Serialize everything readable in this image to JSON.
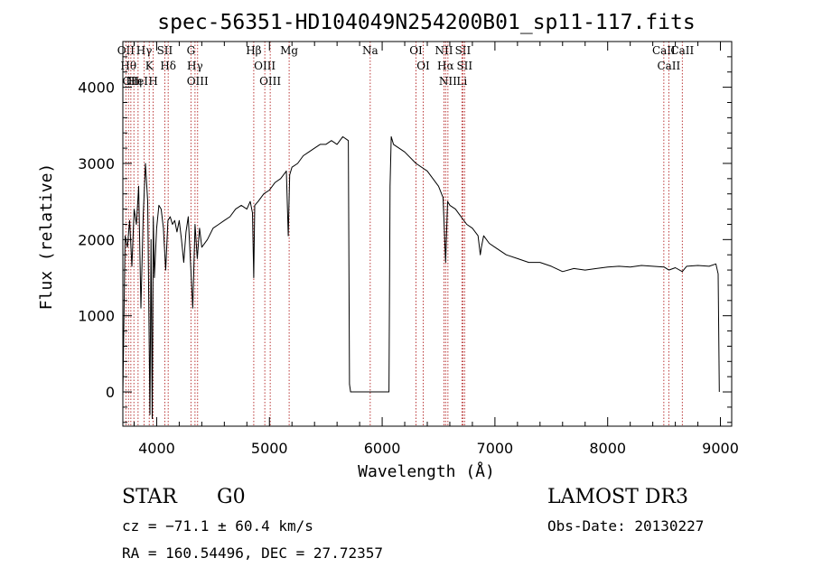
{
  "chart_data": {
    "type": "line",
    "title": "spec-56351-HD104049N254200B01_sp11-117.fits",
    "xlabel": "Wavelength (Å)",
    "ylabel": "Flux (relative)",
    "xlim": [
      3700,
      9100
    ],
    "ylim": [
      -450,
      4600
    ],
    "xticks": [
      4000,
      5000,
      6000,
      7000,
      8000,
      9000
    ],
    "yticks": [
      0,
      1000,
      2000,
      3000,
      4000
    ],
    "grid": false,
    "series": [
      {
        "x": [
          3700,
          3720,
          3740,
          3760,
          3780,
          3800,
          3820,
          3840,
          3860,
          3880,
          3900,
          3920,
          3940,
          3950,
          3960,
          3970,
          3980,
          4000,
          4020,
          4040,
          4060,
          4080,
          4100,
          4120,
          4140,
          4160,
          4180,
          4200,
          4220,
          4240,
          4260,
          4280,
          4300,
          4320,
          4340,
          4360,
          4380,
          4400,
          4450,
          4500,
          4550,
          4600,
          4650,
          4700,
          4750,
          4800,
          4830,
          4850,
          4861,
          4870,
          4900,
          4950,
          5000,
          5050,
          5100,
          5150,
          5167,
          5180,
          5200,
          5250,
          5300,
          5350,
          5400,
          5450,
          5500,
          5550,
          5600,
          5650,
          5700,
          5710,
          5720,
          5900,
          6060,
          6070,
          6080,
          6100,
          6200,
          6300,
          6400,
          6500,
          6540,
          6563,
          6580,
          6600,
          6650,
          6700,
          6750,
          6800,
          6850,
          6870,
          6880,
          6900,
          6950,
          7000,
          7100,
          7200,
          7300,
          7400,
          7500,
          7600,
          7700,
          7800,
          7900,
          8000,
          8100,
          8200,
          8300,
          8400,
          8500,
          8542,
          8600,
          8662,
          8700,
          8800,
          8900,
          8960,
          8980,
          8990
        ],
        "y": [
          -50,
          2050,
          1900,
          2250,
          1650,
          2400,
          2200,
          2700,
          1100,
          2300,
          3000,
          2500,
          -300,
          2000,
          -350,
          2300,
          1500,
          2150,
          2450,
          2400,
          2150,
          1600,
          2250,
          2300,
          2200,
          2250,
          2100,
          2250,
          2000,
          1700,
          2100,
          2300,
          1700,
          1100,
          2200,
          1750,
          2150,
          1900,
          2000,
          2150,
          2200,
          2250,
          2300,
          2400,
          2450,
          2400,
          2500,
          2350,
          1500,
          2450,
          2500,
          2600,
          2650,
          2750,
          2800,
          2900,
          2050,
          2850,
          2950,
          3000,
          3100,
          3150,
          3200,
          3250,
          3250,
          3300,
          3250,
          3350,
          3300,
          100,
          0,
          0,
          0,
          2700,
          3350,
          3250,
          3150,
          3000,
          2900,
          2700,
          2550,
          1700,
          2500,
          2450,
          2400,
          2300,
          2200,
          2150,
          2050,
          1800,
          1900,
          2050,
          1950,
          1900,
          1800,
          1750,
          1700,
          1700,
          1650,
          1580,
          1620,
          1600,
          1620,
          1640,
          1650,
          1640,
          1660,
          1650,
          1640,
          1600,
          1630,
          1580,
          1650,
          1660,
          1650,
          1680,
          1550,
          0
        ]
      }
    ],
    "lines": [
      {
        "wl": 3727,
        "label": "OII"
      },
      {
        "wl": 3750,
        "label": "Hθ"
      },
      {
        "wl": 3771,
        "label": "CII"
      },
      {
        "wl": 3798,
        "label": "Hη"
      },
      {
        "wl": 3835,
        "label": "HeI"
      },
      {
        "wl": 3889,
        "label": "Hγ"
      },
      {
        "wl": 3934,
        "label": "K"
      },
      {
        "wl": 3969,
        "label": "H"
      },
      {
        "wl": 4072,
        "label": "SII"
      },
      {
        "wl": 4102,
        "label": "Hδ"
      },
      {
        "wl": 4304,
        "label": "G"
      },
      {
        "wl": 4340,
        "label": "Hγ"
      },
      {
        "wl": 4363,
        "label": "OIII"
      },
      {
        "wl": 4861,
        "label": "Hβ"
      },
      {
        "wl": 4959,
        "label": "OIII"
      },
      {
        "wl": 5007,
        "label": "OIII"
      },
      {
        "wl": 5175,
        "label": "Mg"
      },
      {
        "wl": 5894,
        "label": "Na"
      },
      {
        "wl": 6300,
        "label": "OI"
      },
      {
        "wl": 6364,
        "label": "OI"
      },
      {
        "wl": 6548,
        "label": "NII"
      },
      {
        "wl": 6563,
        "label": "Hα"
      },
      {
        "wl": 6583,
        "label": "NII"
      },
      {
        "wl": 6707,
        "label": "Li"
      },
      {
        "wl": 6716,
        "label": "SII"
      },
      {
        "wl": 6731,
        "label": "SII"
      },
      {
        "wl": 8498,
        "label": "CaII"
      },
      {
        "wl": 8542,
        "label": "CaII"
      },
      {
        "wl": 8662,
        "label": "CaII"
      }
    ]
  },
  "info": {
    "object_class": "STAR",
    "subclass": "G0",
    "survey": "LAMOST DR3",
    "redshift": "cz = −71.1 ± 60.4 km/s",
    "obs_date": "Obs-Date: 20130227",
    "coords": "RA = 160.54496, DEC =  27.72357"
  },
  "colors": {
    "spectrum": "#000000",
    "line_markers": "#b22222",
    "axes": "#000000",
    "background": "#ffffff"
  }
}
